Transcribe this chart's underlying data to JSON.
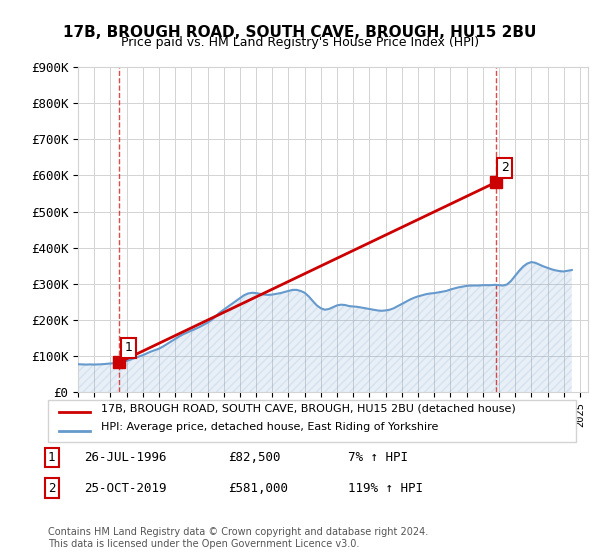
{
  "title": "17B, BROUGH ROAD, SOUTH CAVE, BROUGH, HU15 2BU",
  "subtitle": "Price paid vs. HM Land Registry's House Price Index (HPI)",
  "xlabel": "",
  "ylabel": "",
  "ylim": [
    0,
    900000
  ],
  "yticks": [
    0,
    100000,
    200000,
    300000,
    400000,
    500000,
    600000,
    700000,
    800000,
    900000
  ],
  "ytick_labels": [
    "£0",
    "£100K",
    "£200K",
    "£300K",
    "£400K",
    "£500K",
    "£600K",
    "£700K",
    "£800K",
    "£900K"
  ],
  "xlim_start": 1994.0,
  "xlim_end": 2025.5,
  "hpi_color": "#6699cc",
  "price_color": "#cc0000",
  "sale1_x": 1996.56,
  "sale1_y": 82500,
  "sale1_label": "1",
  "sale2_x": 2019.81,
  "sale2_y": 581000,
  "sale2_label": "2",
  "legend_line1": "17B, BROUGH ROAD, SOUTH CAVE, BROUGH, HU15 2BU (detached house)",
  "legend_line2": "HPI: Average price, detached house, East Riding of Yorkshire",
  "table_row1": "1    26-JUL-1996         £82,500        7% ↑ HPI",
  "table_row2": "2    25-OCT-2019         £581,000      119% ↑ HPI",
  "footnote": "Contains HM Land Registry data © Crown copyright and database right 2024.\nThis data is licensed under the Open Government Licence v3.0.",
  "hpi_data_x": [
    1994.0,
    1994.25,
    1994.5,
    1994.75,
    1995.0,
    1995.25,
    1995.5,
    1995.75,
    1996.0,
    1996.25,
    1996.5,
    1996.75,
    1997.0,
    1997.25,
    1997.5,
    1997.75,
    1998.0,
    1998.25,
    1998.5,
    1998.75,
    1999.0,
    1999.25,
    1999.5,
    1999.75,
    2000.0,
    2000.25,
    2000.5,
    2000.75,
    2001.0,
    2001.25,
    2001.5,
    2001.75,
    2002.0,
    2002.25,
    2002.5,
    2002.75,
    2003.0,
    2003.25,
    2003.5,
    2003.75,
    2004.0,
    2004.25,
    2004.5,
    2004.75,
    2005.0,
    2005.25,
    2005.5,
    2005.75,
    2006.0,
    2006.25,
    2006.5,
    2006.75,
    2007.0,
    2007.25,
    2007.5,
    2007.75,
    2008.0,
    2008.25,
    2008.5,
    2008.75,
    2009.0,
    2009.25,
    2009.5,
    2009.75,
    2010.0,
    2010.25,
    2010.5,
    2010.75,
    2011.0,
    2011.25,
    2011.5,
    2011.75,
    2012.0,
    2012.25,
    2012.5,
    2012.75,
    2013.0,
    2013.25,
    2013.5,
    2013.75,
    2014.0,
    2014.25,
    2014.5,
    2014.75,
    2015.0,
    2015.25,
    2015.5,
    2015.75,
    2016.0,
    2016.25,
    2016.5,
    2016.75,
    2017.0,
    2017.25,
    2017.5,
    2017.75,
    2018.0,
    2018.25,
    2018.5,
    2018.75,
    2019.0,
    2019.25,
    2019.5,
    2019.75,
    2020.0,
    2020.25,
    2020.5,
    2020.75,
    2021.0,
    2021.25,
    2021.5,
    2021.75,
    2022.0,
    2022.25,
    2022.5,
    2022.75,
    2023.0,
    2023.25,
    2023.5,
    2023.75,
    2024.0,
    2024.25,
    2024.5
  ],
  "hpi_data_y": [
    77000,
    76500,
    76000,
    76500,
    76000,
    76500,
    77000,
    78000,
    79000,
    80000,
    81000,
    83000,
    86000,
    90000,
    94000,
    98000,
    102000,
    107000,
    112000,
    116000,
    120000,
    126000,
    133000,
    140000,
    147000,
    154000,
    160000,
    165000,
    170000,
    175000,
    180000,
    186000,
    192000,
    200000,
    210000,
    220000,
    228000,
    236000,
    244000,
    252000,
    260000,
    268000,
    273000,
    275000,
    274000,
    272000,
    270000,
    269000,
    270000,
    272000,
    274000,
    277000,
    280000,
    283000,
    283000,
    280000,
    275000,
    265000,
    252000,
    240000,
    232000,
    228000,
    230000,
    235000,
    240000,
    242000,
    241000,
    238000,
    237000,
    236000,
    234000,
    232000,
    230000,
    228000,
    226000,
    225000,
    226000,
    228000,
    232000,
    238000,
    244000,
    250000,
    256000,
    261000,
    265000,
    268000,
    271000,
    273000,
    274000,
    276000,
    278000,
    280000,
    284000,
    287000,
    290000,
    292000,
    294000,
    295000,
    295000,
    295000,
    296000,
    296000,
    296000,
    297000,
    296000,
    295000,
    298000,
    308000,
    322000,
    336000,
    348000,
    356000,
    360000,
    358000,
    353000,
    348000,
    344000,
    340000,
    337000,
    335000,
    334000,
    336000,
    338000
  ],
  "price_data_x": [
    1996.56,
    2019.81
  ],
  "price_data_y": [
    82500,
    581000
  ],
  "dashed_vline1_x": 1996.56,
  "dashed_vline2_x": 2019.81
}
